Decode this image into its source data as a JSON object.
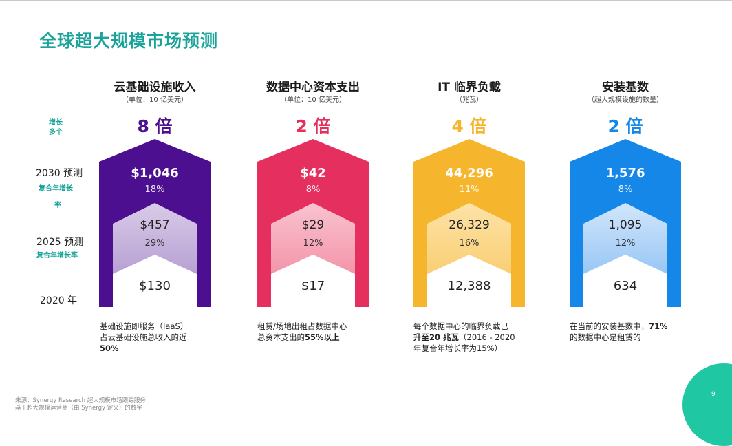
{
  "title": "全球超大规模市场预测",
  "row_labels": {
    "growth": [
      "增长",
      "多个"
    ],
    "forecast_2030": "2030 预测",
    "cagr_2030": [
      "复合年增长",
      "率"
    ],
    "forecast_2025": "2025 预测",
    "cagr_2025": "复合年增长率",
    "year_2020": "2020 年"
  },
  "columns": [
    {
      "title": "云基础设施收入",
      "unit": "（单位：10 亿美元）",
      "multiplier": "8 倍",
      "color": "#4b0f8f",
      "v2030": "$1,046",
      "g2030": "18%",
      "v2025": "$457",
      "g2025": "29%",
      "v2020": "$130",
      "note": [
        "基础设施即服务（IaaS）",
        "占云基础设施总收入的近",
        "50%"
      ]
    },
    {
      "title": "数据中心资本支出",
      "unit": "（单位：10 亿美元）",
      "multiplier": "2 倍",
      "color": "#e5305f",
      "v2030": "$42",
      "g2030": "8%",
      "v2025": "$29",
      "g2025": "12%",
      "v2020": "$17",
      "note": [
        "租赁/场地出租占数据中心",
        "总资本支出的",
        "55%以上"
      ]
    },
    {
      "title": "IT 临界负载",
      "unit": "（兆瓦）",
      "multiplier": "4 倍",
      "color": "#f5b52c",
      "v2030": "44,296",
      "g2030": "11%",
      "v2025": "26,329",
      "g2025": "16%",
      "v2020": "12,388",
      "note": [
        "每个数据中心的临界负载已",
        "升至20 兆瓦",
        "（2016 - 2020",
        "年复合年增长率为15%）"
      ]
    },
    {
      "title": "安装基数",
      "unit": "（超大规模设施的数量）",
      "multiplier": "2 倍",
      "color": "#1487e8",
      "v2030": "1,576",
      "g2030": "8%",
      "v2025": "1,095",
      "g2025": "12%",
      "v2020": "634",
      "note": [
        "在当前的安装基数中，",
        "71%",
        "的数据中心是租赁的"
      ]
    }
  ],
  "source": [
    "来源：Synergy Research 超大规模市场跟踪服务",
    "基于超大规模运营商（由 Synergy 定义）的数字"
  ],
  "page_number": "9"
}
